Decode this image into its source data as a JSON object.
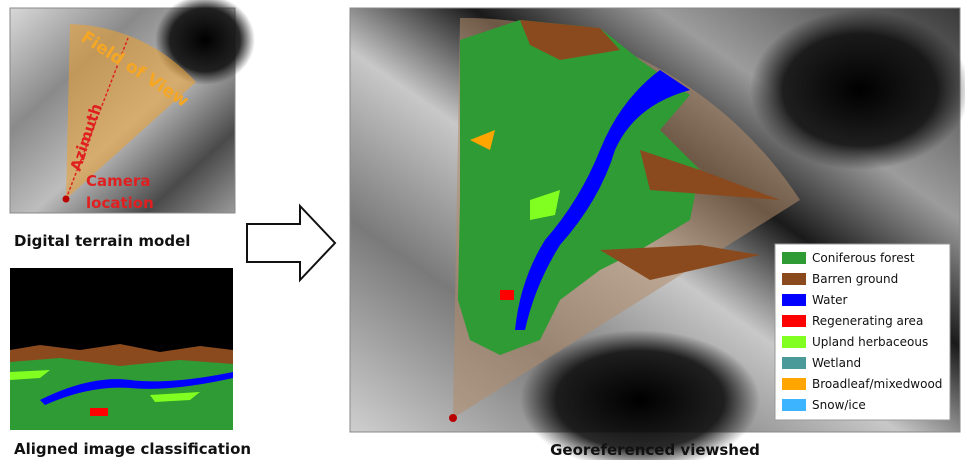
{
  "panels": {
    "dtm": {
      "caption": "Digital terrain model",
      "labels": {
        "field_of_view": "Field of View",
        "azimuth": "Azimuth",
        "camera": [
          "Camera",
          "location"
        ]
      }
    },
    "classification": {
      "caption": "Aligned image classification"
    },
    "viewshed": {
      "caption": "Georeferenced viewshed",
      "legend": [
        {
          "label": "Coniferous forest",
          "color": "#2f9b34"
        },
        {
          "label": "Barren ground",
          "color": "#8b4a1e"
        },
        {
          "label": "Water",
          "color": "#0000ff"
        },
        {
          "label": "Regenerating area",
          "color": "#ff0000"
        },
        {
          "label": "Upland herbaceous",
          "color": "#80ff20"
        },
        {
          "label": "Wetland",
          "color": "#4a9a9a"
        },
        {
          "label": "Broadleaf/mixedwood",
          "color": "#ffa500"
        },
        {
          "label": "Snow/ice",
          "color": "#3cb4ff"
        }
      ]
    }
  }
}
